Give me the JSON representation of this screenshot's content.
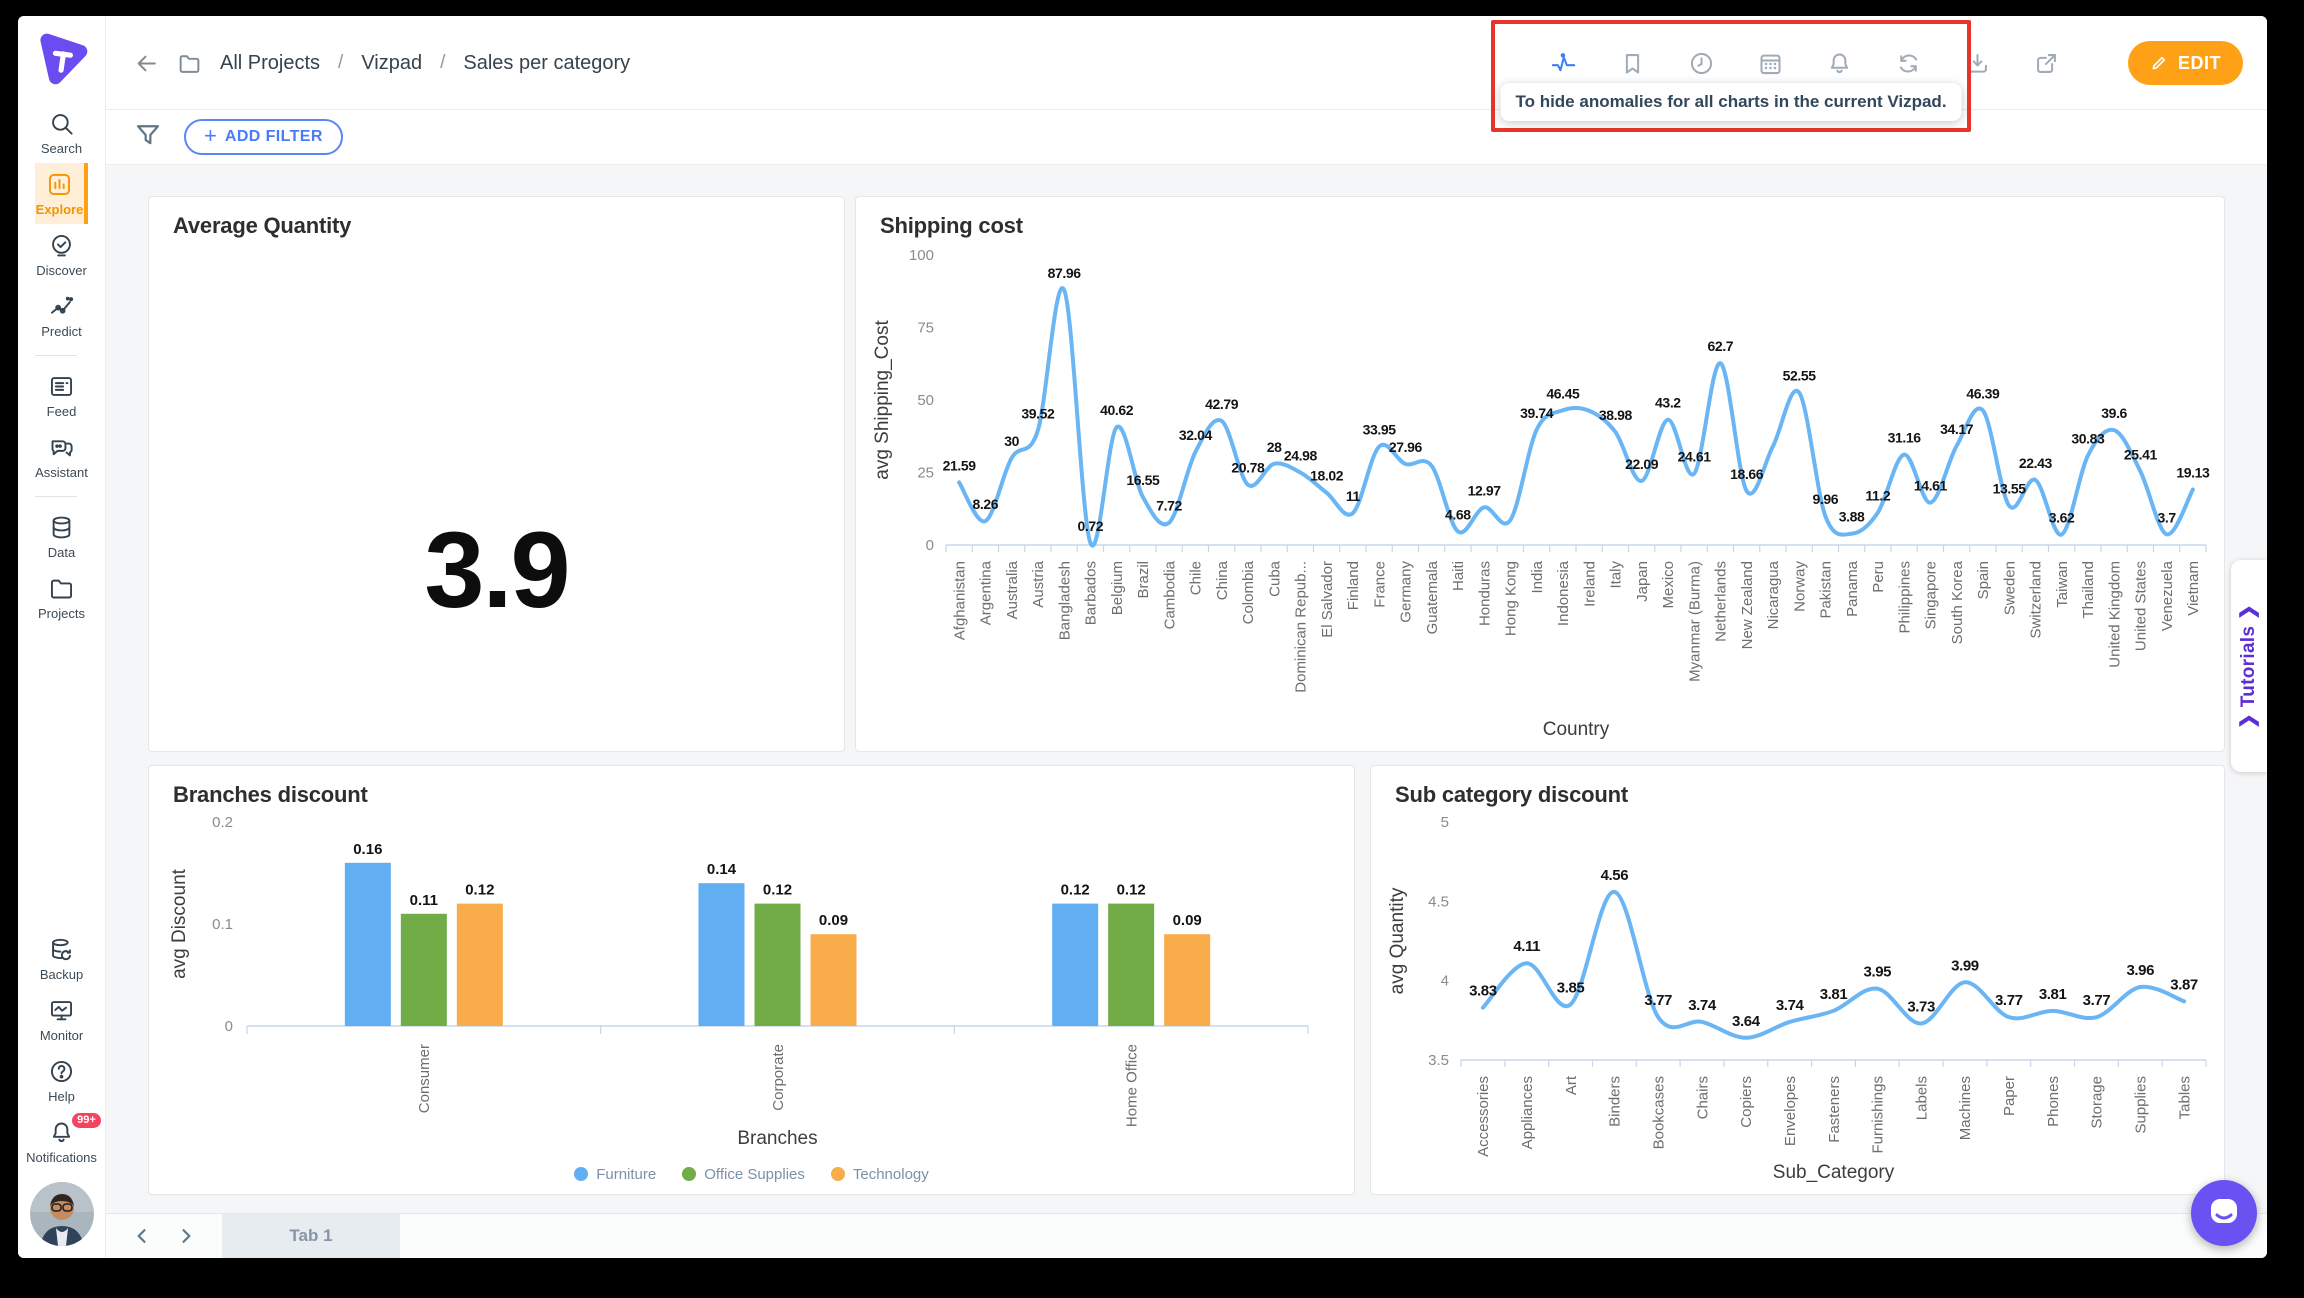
{
  "colors": {
    "accent_orange": "#ffa117",
    "active_orange": "#f59300",
    "active_orange_bg": "#ffefd8",
    "filter_blue": "#4c7cf3",
    "line_blue": "#6ab5f4",
    "bar_blue": "#62aef2",
    "bar_green": "#71ac47",
    "bar_orange": "#f8ad4a",
    "annotation_red": "#e8352a",
    "purple": "#6b4cf0",
    "tutorials_purple": "#5b2ed6",
    "badge_red": "#f4445f"
  },
  "sidebar": {
    "items": [
      {
        "label": "Search",
        "icon": "search-icon",
        "active": false
      },
      {
        "label": "Explore",
        "icon": "explore-icon",
        "active": true
      },
      {
        "label": "Discover",
        "icon": "discover-icon",
        "active": false
      },
      {
        "label": "Predict",
        "icon": "predict-icon",
        "active": false
      },
      {
        "divider": true
      },
      {
        "label": "Feed",
        "icon": "feed-icon",
        "active": false
      },
      {
        "label": "Assistant",
        "icon": "assistant-icon",
        "active": false
      },
      {
        "divider": true
      },
      {
        "label": "Data",
        "icon": "data-icon",
        "active": false
      },
      {
        "label": "Projects",
        "icon": "projects-icon",
        "active": false
      }
    ],
    "bottom_items": [
      {
        "label": "Backup",
        "icon": "backup-icon"
      },
      {
        "label": "Monitor",
        "icon": "monitor-icon"
      },
      {
        "label": "Help",
        "icon": "help-icon"
      },
      {
        "label": "Notifications",
        "icon": "bell-icon",
        "badge": "99+"
      }
    ],
    "notifications_badge": "99+"
  },
  "topbar": {
    "breadcrumb": [
      "All Projects",
      "Vizpad",
      "Sales per category"
    ],
    "separator": "/",
    "icons": [
      {
        "name": "anomaly-icon",
        "active": true
      },
      {
        "name": "bookmark-icon",
        "active": false
      },
      {
        "name": "clock-icon",
        "active": false
      },
      {
        "name": "calendar-icon",
        "active": false
      },
      {
        "name": "bell-icon",
        "active": false
      },
      {
        "name": "sync-icon",
        "active": false
      },
      {
        "name": "download-icon",
        "active": false
      },
      {
        "name": "share-icon",
        "active": false
      }
    ],
    "edit_label": "EDIT"
  },
  "annotation": {
    "tooltip": "To hide anomalies for all charts in the current Vizpad."
  },
  "filter_bar": {
    "add_filter_label": "ADD FILTER"
  },
  "tabbar": {
    "active_tab": "Tab 1"
  },
  "side_tab": {
    "label": "Tutorials",
    "chevron": "❯"
  },
  "chart_data": [
    {
      "type": "kpi",
      "title": "Average Quantity",
      "value": "3.9"
    },
    {
      "type": "line",
      "title": "Shipping cost",
      "xlabel": "Country",
      "ylabel": "avg Shipping_Cost",
      "ylim": [
        0,
        100
      ],
      "yticks": [
        0,
        25,
        50,
        75,
        100
      ],
      "line_color": "#6ab5f4",
      "categories": [
        "Afghanistan",
        "Argentina",
        "Australia",
        "Austria",
        "Bangladesh",
        "Barbados",
        "Belgium",
        "Brazil",
        "Cambodia",
        "Chile",
        "China",
        "Colombia",
        "Cuba",
        "Dominican Repub...",
        "El Salvador",
        "Finland",
        "France",
        "Germany",
        "Guatemala",
        "Haiti",
        "Honduras",
        "Hong Kong",
        "India",
        "Indonesia",
        "Ireland",
        "Italy",
        "Japan",
        "Mexico",
        "Myanmar (Burma)",
        "Netherlands",
        "New Zealand",
        "Nicaragua",
        "Norway",
        "Pakistan",
        "Panama",
        "Peru",
        "Philippines",
        "Singapore",
        "South Korea",
        "Spain",
        "Sweden",
        "Switzerland",
        "Taiwan",
        "Thailand",
        "United Kingdom",
        "United States",
        "Venezuela",
        "Vietnam"
      ],
      "values": [
        21.59,
        8.26,
        30,
        39.52,
        87.96,
        0.72,
        40.62,
        16.55,
        7.72,
        32.04,
        42.79,
        20.78,
        28,
        24.98,
        18.02,
        11,
        33.95,
        27.96,
        27.3,
        4.68,
        12.97,
        8.6,
        39.74,
        46.45,
        46.3,
        38.98,
        22.09,
        43.2,
        24.61,
        62.7,
        18.66,
        34,
        52.55,
        9.96,
        3.88,
        11.2,
        31.16,
        14.61,
        34.17,
        46.39,
        13.55,
        22.43,
        3.62,
        30.83,
        39.6,
        25.41,
        3.7,
        19.13
      ],
      "labels": [
        "21.59",
        "8.26",
        "30",
        "39.52",
        "87.96",
        "0.72",
        "40.62",
        "16.55",
        "7.72",
        "32.04",
        "42.79",
        "20.78",
        "28",
        "24.98",
        "18.02",
        "11",
        "33.95",
        "27.96",
        "",
        "4.68",
        "12.97",
        "",
        "39.74",
        "46.45",
        "",
        "38.98",
        "22.09",
        "43.2",
        "24.61",
        "62.7",
        "18.66",
        "",
        "52.55",
        "9.96",
        "3.88",
        "11.2",
        "31.16",
        "14.61",
        "34.17",
        "46.39",
        "13.55",
        "22.43",
        "3.62",
        "30.83",
        "39.6",
        "25.41",
        "3.7",
        "19.13"
      ]
    },
    {
      "type": "bar",
      "title": "Branches discount",
      "xlabel": "Branches",
      "ylabel": "avg Discount",
      "ylim": [
        0,
        0.2
      ],
      "yticks": [
        0,
        0.1,
        0.2
      ],
      "categories": [
        "Consumer",
        "Corporate",
        "Home Office"
      ],
      "series": [
        {
          "name": "Furniture",
          "color": "#62aef2",
          "values": [
            0.16,
            0.14,
            0.12
          ]
        },
        {
          "name": "Office Supplies",
          "color": "#71ac47",
          "values": [
            0.11,
            0.12,
            0.12
          ]
        },
        {
          "name": "Technology",
          "color": "#f8ad4a",
          "values": [
            0.12,
            0.09,
            0.09
          ]
        }
      ],
      "legend_position": "bottom"
    },
    {
      "type": "line",
      "title": "Sub category discount",
      "xlabel": "Sub_Category",
      "ylabel": "avg Quantity",
      "ylim": [
        3.5,
        5
      ],
      "yticks": [
        3.5,
        4,
        4.5,
        5
      ],
      "line_color": "#6ab5f4",
      "categories": [
        "Accessories",
        "Appliances",
        "Art",
        "Binders",
        "Bookcases",
        "Chairs",
        "Copiers",
        "Envelopes",
        "Fasteners",
        "Furnishings",
        "Labels",
        "Machines",
        "Paper",
        "Phones",
        "Storage",
        "Supplies",
        "Tables"
      ],
      "values": [
        3.83,
        4.11,
        3.85,
        4.56,
        3.77,
        3.74,
        3.64,
        3.74,
        3.81,
        3.95,
        3.73,
        3.99,
        3.77,
        3.81,
        3.77,
        3.96,
        3.87
      ],
      "labels": [
        "3.83",
        "4.11",
        "3.85",
        "4.56",
        "3.77",
        "3.74",
        "3.64",
        "3.74",
        "3.81",
        "3.95",
        "3.73",
        "3.99",
        "3.77",
        "3.81",
        "3.77",
        "3.96",
        "3.87"
      ]
    }
  ]
}
